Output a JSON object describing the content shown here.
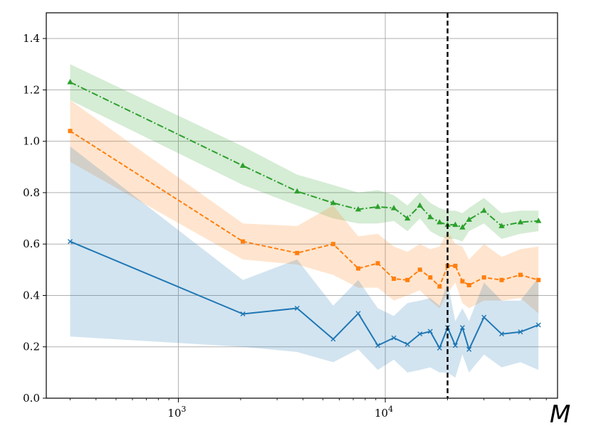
{
  "chart_data": {
    "type": "line",
    "title": "",
    "xlabel": "M",
    "ylabel": "",
    "xscale": "log",
    "xlim": [
      230,
      68000
    ],
    "ylim": [
      0.0,
      1.5
    ],
    "yticks": [
      0.0,
      0.2,
      0.4,
      0.6,
      0.8,
      1.0,
      1.2,
      1.4
    ],
    "ytick_labels": [
      "0.0",
      "0.2",
      "0.4",
      "0.6",
      "0.8",
      "1.0",
      "1.2",
      "1.4"
    ],
    "xticks": [
      {
        "value": 1000,
        "base": "10",
        "exp": "3"
      },
      {
        "value": 10000,
        "base": "10",
        "exp": "4"
      }
    ],
    "grid": true,
    "vline": {
      "x": 20000,
      "color": "#000000",
      "style": "dashed"
    },
    "colors": {
      "blue": "#1f77b4",
      "orange": "#ff7f0e",
      "green": "#2ca02c"
    },
    "series": [
      {
        "color": "#2ca02c",
        "linestyle": "dashdot",
        "marker": "triangle",
        "x": [
          300,
          2050,
          3750,
          5600,
          7400,
          9200,
          11000,
          12800,
          14700,
          16500,
          18300,
          20000,
          21800,
          23600,
          25400,
          30000,
          36500,
          45000,
          55000
        ],
        "y": [
          1.23,
          0.905,
          0.805,
          0.76,
          0.735,
          0.745,
          0.74,
          0.7,
          0.75,
          0.705,
          0.685,
          0.675,
          0.675,
          0.665,
          0.695,
          0.73,
          0.67,
          0.685,
          0.69
        ],
        "y_upper": [
          1.3,
          0.98,
          0.87,
          0.83,
          0.8,
          0.81,
          0.79,
          0.75,
          0.8,
          0.76,
          0.74,
          0.73,
          0.73,
          0.72,
          0.74,
          0.78,
          0.72,
          0.73,
          0.73
        ],
        "y_lower": [
          1.16,
          0.83,
          0.75,
          0.7,
          0.68,
          0.68,
          0.69,
          0.65,
          0.7,
          0.65,
          0.63,
          0.62,
          0.62,
          0.61,
          0.65,
          0.68,
          0.62,
          0.64,
          0.65
        ]
      },
      {
        "color": "#ff7f0e",
        "linestyle": "dashed",
        "marker": "square",
        "x": [
          300,
          2050,
          3750,
          5600,
          7400,
          9200,
          11000,
          12800,
          14700,
          16500,
          18300,
          20000,
          21800,
          23600,
          25400,
          30000,
          36500,
          45000,
          55000
        ],
        "y": [
          1.04,
          0.61,
          0.565,
          0.6,
          0.505,
          0.525,
          0.465,
          0.46,
          0.5,
          0.47,
          0.435,
          0.515,
          0.515,
          0.455,
          0.44,
          0.47,
          0.46,
          0.48,
          0.46
        ],
        "y_upper": [
          1.16,
          0.68,
          0.67,
          0.75,
          0.63,
          0.64,
          0.59,
          0.57,
          0.6,
          0.58,
          0.59,
          0.65,
          0.6,
          0.59,
          0.54,
          0.6,
          0.55,
          0.58,
          0.59
        ],
        "y_lower": [
          0.92,
          0.54,
          0.52,
          0.48,
          0.43,
          0.43,
          0.38,
          0.4,
          0.42,
          0.38,
          0.35,
          0.41,
          0.45,
          0.37,
          0.35,
          0.38,
          0.38,
          0.39,
          0.33
        ]
      },
      {
        "color": "#1f77b4",
        "linestyle": "solid",
        "marker": "x",
        "x": [
          300,
          2050,
          3750,
          5600,
          7400,
          9200,
          11000,
          12800,
          14700,
          16500,
          18300,
          20000,
          21800,
          23600,
          25400,
          30000,
          36500,
          45000,
          55000
        ],
        "y": [
          0.61,
          0.328,
          0.35,
          0.23,
          0.33,
          0.205,
          0.235,
          0.21,
          0.25,
          0.26,
          0.195,
          0.275,
          0.205,
          0.275,
          0.19,
          0.315,
          0.25,
          0.258,
          0.285
        ],
        "y_upper": [
          0.98,
          0.46,
          0.54,
          0.36,
          0.46,
          0.35,
          0.32,
          0.37,
          0.38,
          0.39,
          0.36,
          0.45,
          0.3,
          0.35,
          0.3,
          0.45,
          0.38,
          0.38,
          0.47
        ],
        "y_lower": [
          0.24,
          0.2,
          0.18,
          0.14,
          0.19,
          0.11,
          0.15,
          0.1,
          0.11,
          0.12,
          0.1,
          0.1,
          0.08,
          0.17,
          0.1,
          0.17,
          0.12,
          0.14,
          0.11
        ]
      }
    ]
  }
}
